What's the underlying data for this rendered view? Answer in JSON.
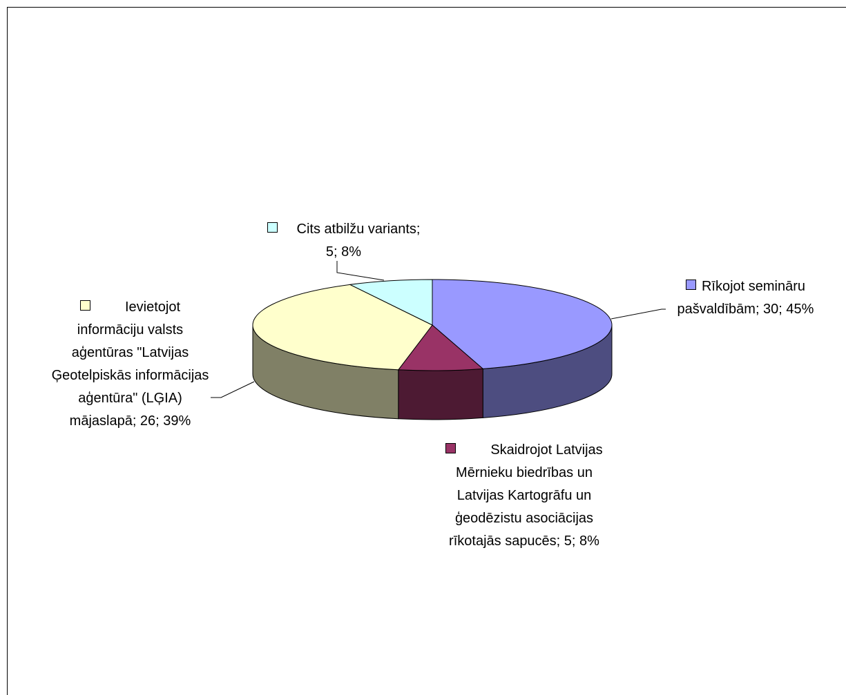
{
  "chart_data": {
    "type": "pie3d",
    "values": [
      30,
      5,
      26,
      5
    ],
    "value_labels": [
      "Rīkojot semināru pašvaldībām; 30; 45%",
      "Skaidrojot Latvijas Mērnieku biedrības un Latvijas Kartogrāfu un ģeodēzistu asociācijas rīkotajās sapucēs; 5; 8%",
      "Ievietojot informāciju valsts aģentūras \"Latvijas Ģeotelpiskās informācijas aģentūra\" (LĢIA) mājaslapā; 26; 39%",
      "Cits atbilžu variants; 5; 8%"
    ],
    "colors": [
      "#9999ff",
      "#993366",
      "#ffffcc",
      "#ccffff"
    ]
  }
}
